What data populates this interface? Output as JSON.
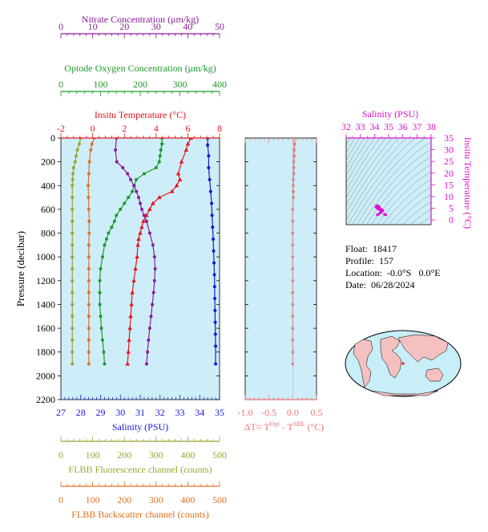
{
  "meta": {
    "float_label": "Float:",
    "float": "18417",
    "profile_label": "Profile:",
    "profile": "157",
    "location_label": "Location:",
    "location": "-0.0°S   0.0°E",
    "date_label": "Date:",
    "date": "06/28/2024"
  },
  "colors": {
    "nitrate": "#8b1a9a",
    "oxygen": "#1a9a2a",
    "temperature": "#e8141e",
    "salinity": "#1717d8",
    "fluorescence": "#9aa534",
    "backscatter": "#e07020",
    "delta_t": "#f07070",
    "ts_axis": "#e010d0",
    "plot_bg": "#cdeef8"
  },
  "chart_data": [
    {
      "type": "line",
      "panel": "profiles",
      "ylabel": "Pressure (decibar)",
      "ylim": [
        2200,
        0
      ],
      "yticks": [
        0,
        200,
        400,
        600,
        800,
        1000,
        1200,
        1400,
        1600,
        1800,
        2000,
        2200
      ],
      "axes": {
        "nitrate": {
          "label": "Nitrate Concentration (μm/kg)",
          "range": [
            0,
            50
          ],
          "ticks": [
            0,
            10,
            20,
            30,
            40,
            50
          ],
          "position": "top"
        },
        "oxygen": {
          "label": "Optode Oxygen Concentration (μm/kg)",
          "range": [
            0,
            400
          ],
          "ticks": [
            0,
            100,
            200,
            300,
            400
          ],
          "position": "top"
        },
        "temperature": {
          "label": "Insitu Temperature (°C)",
          "range": [
            -2,
            8
          ],
          "ticks": [
            -2,
            0,
            2,
            4,
            6,
            8
          ],
          "position": "top"
        },
        "salinity": {
          "label": "Salinity (PSU)",
          "range": [
            27,
            35
          ],
          "ticks": [
            27,
            28,
            29,
            30,
            31,
            32,
            33,
            34,
            35
          ],
          "position": "bottom"
        },
        "fluorescence": {
          "label": "FLBB Fluorescence channel (counts)",
          "range": [
            0,
            500
          ],
          "ticks": [
            0,
            100,
            200,
            300,
            400,
            500
          ],
          "position": "bottom"
        },
        "backscatter": {
          "label": "FLBB Backscatter channel (counts)",
          "range": [
            0,
            500
          ],
          "ticks": [
            0,
            100,
            200,
            300,
            400,
            500
          ],
          "position": "bottom"
        }
      },
      "series": [
        {
          "axis": "salinity",
          "marker": "circle",
          "points": [
            [
              34.4,
              0
            ],
            [
              34.4,
              60
            ],
            [
              34.45,
              150
            ],
            [
              34.45,
              250
            ],
            [
              34.5,
              350
            ],
            [
              34.55,
              450
            ],
            [
              34.6,
              550
            ],
            [
              34.62,
              650
            ],
            [
              34.65,
              750
            ],
            [
              34.68,
              850
            ],
            [
              34.7,
              950
            ],
            [
              34.72,
              1050
            ],
            [
              34.74,
              1150
            ],
            [
              34.75,
              1250
            ],
            [
              34.76,
              1350
            ],
            [
              34.77,
              1450
            ],
            [
              34.78,
              1550
            ],
            [
              34.79,
              1650
            ],
            [
              34.8,
              1750
            ],
            [
              34.8,
              1900
            ]
          ]
        },
        {
          "axis": "temperature",
          "marker": "triangle",
          "points": [
            [
              6.2,
              0
            ],
            [
              6.0,
              50
            ],
            [
              5.9,
              100
            ],
            [
              5.6,
              200
            ],
            [
              5.4,
              300
            ],
            [
              5.5,
              350
            ],
            [
              5.3,
              400
            ],
            [
              5.0,
              450
            ],
            [
              4.2,
              500
            ],
            [
              3.8,
              550
            ],
            [
              3.6,
              600
            ],
            [
              3.4,
              650
            ],
            [
              3.2,
              700
            ],
            [
              3.1,
              750
            ],
            [
              3.0,
              800
            ],
            [
              2.9,
              850
            ],
            [
              2.85,
              900
            ],
            [
              2.8,
              1000
            ],
            [
              2.7,
              1100
            ],
            [
              2.6,
              1200
            ],
            [
              2.5,
              1300
            ],
            [
              2.45,
              1400
            ],
            [
              2.4,
              1500
            ],
            [
              2.35,
              1600
            ],
            [
              2.3,
              1700
            ],
            [
              2.25,
              1800
            ],
            [
              2.2,
              1900
            ]
          ]
        },
        {
          "axis": "oxygen",
          "marker": "circle",
          "points": [
            [
              255,
              0
            ],
            [
              255,
              50
            ],
            [
              252,
              100
            ],
            [
              250,
              150
            ],
            [
              248,
              200
            ],
            [
              240,
              250
            ],
            [
              210,
              300
            ],
            [
              190,
              350
            ],
            [
              185,
              400
            ],
            [
              180,
              450
            ],
            [
              170,
              500
            ],
            [
              160,
              550
            ],
            [
              150,
              600
            ],
            [
              140,
              650
            ],
            [
              135,
              700
            ],
            [
              128,
              750
            ],
            [
              120,
              800
            ],
            [
              115,
              850
            ],
            [
              110,
              900
            ],
            [
              105,
              1000
            ],
            [
              100,
              1100
            ],
            [
              98,
              1200
            ],
            [
              98,
              1300
            ],
            [
              98,
              1400
            ],
            [
              100,
              1500
            ],
            [
              102,
              1600
            ],
            [
              105,
              1700
            ],
            [
              108,
              1800
            ],
            [
              110,
              1900
            ]
          ]
        },
        {
          "axis": "nitrate",
          "marker": "circle",
          "points": [
            [
              17.5,
              0
            ],
            [
              17.2,
              100
            ],
            [
              17.6,
              200
            ],
            [
              19.5,
              250
            ],
            [
              21.0,
              300
            ],
            [
              22.0,
              350
            ],
            [
              23.0,
              400
            ],
            [
              23.8,
              450
            ],
            [
              24.5,
              500
            ],
            [
              25.0,
              550
            ],
            [
              25.5,
              600
            ],
            [
              26.2,
              650
            ],
            [
              27.0,
              700
            ],
            [
              28.0,
              800
            ],
            [
              29.0,
              900
            ],
            [
              29.5,
              1000
            ],
            [
              29.7,
              1100
            ],
            [
              29.5,
              1200
            ],
            [
              29.2,
              1300
            ],
            [
              28.8,
              1400
            ],
            [
              28.4,
              1500
            ],
            [
              28.0,
              1600
            ],
            [
              27.6,
              1700
            ],
            [
              27.3,
              1800
            ],
            [
              27.0,
              1900
            ]
          ]
        },
        {
          "axis": "fluorescence",
          "marker": "circle",
          "points": [
            [
              62,
              0
            ],
            [
              58,
              50
            ],
            [
              52,
              100
            ],
            [
              48,
              150
            ],
            [
              45,
              200
            ],
            [
              40,
              250
            ],
            [
              38,
              300
            ],
            [
              37,
              350
            ],
            [
              36,
              400
            ],
            [
              36,
              500
            ],
            [
              36,
              600
            ],
            [
              36,
              700
            ],
            [
              36,
              800
            ],
            [
              36,
              900
            ],
            [
              36,
              1000
            ],
            [
              36,
              1100
            ],
            [
              36,
              1200
            ],
            [
              36,
              1300
            ],
            [
              36,
              1400
            ],
            [
              36,
              1500
            ],
            [
              36,
              1600
            ],
            [
              36,
              1700
            ],
            [
              36,
              1800
            ],
            [
              36,
              1900
            ]
          ]
        },
        {
          "axis": "backscatter",
          "marker": "circle",
          "points": [
            [
              105,
              0
            ],
            [
              98,
              50
            ],
            [
              94,
              100
            ],
            [
              90,
              200
            ],
            [
              88,
              300
            ],
            [
              86,
              400
            ],
            [
              87,
              500
            ],
            [
              88,
              600
            ],
            [
              89,
              700
            ],
            [
              89,
              800
            ],
            [
              88,
              900
            ],
            [
              88,
              1000
            ],
            [
              88,
              1100
            ],
            [
              88,
              1200
            ],
            [
              88,
              1300
            ],
            [
              88,
              1400
            ],
            [
              88,
              1500
            ],
            [
              88,
              1600
            ],
            [
              88,
              1700
            ],
            [
              88,
              1800
            ],
            [
              88,
              1900
            ]
          ]
        }
      ]
    },
    {
      "type": "line",
      "panel": "delta_t",
      "xlabel_parts": [
        "ΔT= T",
        "Opt",
        " - T",
        "SBE",
        " (°C)"
      ],
      "xlim": [
        -1.0,
        0.5
      ],
      "xticks": [
        -1.0,
        -0.5,
        0.0,
        0.5
      ],
      "ylim": [
        2200,
        0
      ],
      "series": [
        {
          "marker": "circle",
          "points": [
            [
              0.04,
              0
            ],
            [
              0.04,
              50
            ],
            [
              0.03,
              100
            ],
            [
              0.03,
              150
            ],
            [
              0.02,
              200
            ],
            [
              0.02,
              250
            ],
            [
              0.02,
              300
            ],
            [
              0.01,
              350
            ],
            [
              0.01,
              400
            ],
            [
              0.01,
              450
            ],
            [
              0.01,
              500
            ],
            [
              0.0,
              600
            ],
            [
              0.0,
              700
            ],
            [
              0.0,
              800
            ],
            [
              0.0,
              900
            ],
            [
              0.0,
              1000
            ],
            [
              0.0,
              1100
            ],
            [
              0.0,
              1200
            ],
            [
              0.0,
              1300
            ],
            [
              0.0,
              1400
            ],
            [
              0.0,
              1500
            ],
            [
              0.0,
              1600
            ],
            [
              0.0,
              1700
            ],
            [
              0.0,
              1800
            ],
            [
              0.0,
              1900
            ]
          ]
        }
      ]
    },
    {
      "type": "scatter",
      "panel": "ts_diagram",
      "xlabel": "Salinity (PSU)",
      "ylabel": "Insitu Temperature (°C)",
      "xlim": [
        32,
        38
      ],
      "ylim": [
        -2,
        35
      ],
      "xticks": [
        32,
        33,
        34,
        35,
        36,
        37,
        38
      ],
      "yticks": [
        0,
        5,
        10,
        15,
        20,
        25,
        30,
        35
      ],
      "points": [
        [
          34.2,
          2.2
        ],
        [
          34.3,
          2.5
        ],
        [
          34.4,
          3.0
        ],
        [
          34.5,
          3.5
        ],
        [
          34.6,
          4.0
        ],
        [
          34.4,
          4.2
        ],
        [
          34.3,
          4.6
        ],
        [
          34.2,
          5.0
        ],
        [
          34.1,
          5.5
        ],
        [
          34.15,
          6.0
        ],
        [
          34.2,
          6.2
        ],
        [
          34.3,
          5.8
        ],
        [
          34.35,
          5.4
        ],
        [
          34.4,
          4.8
        ],
        [
          34.5,
          4.5
        ],
        [
          34.55,
          3.8
        ],
        [
          34.45,
          3.2
        ],
        [
          34.7,
          2.4
        ],
        [
          34.75,
          2.3
        ],
        [
          34.8,
          2.2
        ],
        [
          34.25,
          5.9
        ],
        [
          34.5,
          4.0
        ]
      ]
    }
  ]
}
